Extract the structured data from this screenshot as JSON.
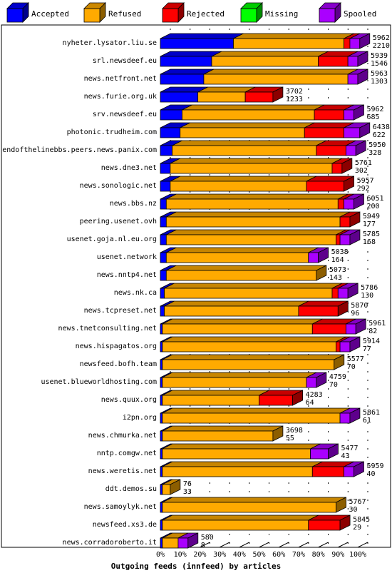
{
  "chart_data": {
    "type": "bar",
    "orientation": "horizontal",
    "stacked": true,
    "title": "Outgoing feeds (innfeed) by articles",
    "legend_position": "top",
    "grid": true,
    "xlim": [
      0,
      100
    ],
    "x_ticks": [
      "0%",
      "10%",
      "20%",
      "30%",
      "40%",
      "50%",
      "60%",
      "70%",
      "80%",
      "90%",
      "100%"
    ],
    "series": [
      {
        "name": "Accepted",
        "color": "#0000ff"
      },
      {
        "name": "Refused",
        "color": "#ffaa00"
      },
      {
        "name": "Rejected",
        "color": "#ff0000"
      },
      {
        "name": "Missing",
        "color": "#00ff00"
      },
      {
        "name": "Spooled",
        "color": "#aa00ff"
      }
    ],
    "categories": [
      {
        "name": "nyheter.lysator.liu.se",
        "total": "5962",
        "accepted_count": "2210",
        "values": [
          37,
          56,
          3,
          0,
          5
        ]
      },
      {
        "name": "srl.newsdeef.eu",
        "total": "5939",
        "accepted_count": "1546",
        "values": [
          26,
          54,
          15,
          0,
          5
        ]
      },
      {
        "name": "news.netfront.net",
        "total": "5963",
        "accepted_count": "1303",
        "values": [
          22,
          73,
          0,
          0,
          5
        ]
      },
      {
        "name": "news.furie.org.uk",
        "total": "3702",
        "accepted_count": "1233",
        "values": [
          19,
          24,
          14,
          0,
          0
        ]
      },
      {
        "name": "srv.newsdeef.eu",
        "total": "5962",
        "accepted_count": "685",
        "values": [
          11,
          67,
          15,
          0,
          5
        ]
      },
      {
        "name": "photonic.trudheim.com",
        "total": "6438",
        "accepted_count": "622",
        "values": [
          10,
          63,
          20,
          0,
          8
        ]
      },
      {
        "name": "endofthelinebbs.peers.news.panix.com",
        "total": "5950",
        "accepted_count": "328",
        "values": [
          6,
          73,
          15,
          0,
          5
        ]
      },
      {
        "name": "news.dne3.net",
        "total": "5761",
        "accepted_count": "302",
        "values": [
          5,
          82,
          5,
          0,
          0
        ]
      },
      {
        "name": "news.sonologic.net",
        "total": "5957",
        "accepted_count": "292",
        "values": [
          5,
          69,
          19,
          0,
          0
        ]
      },
      {
        "name": "news.bbs.nz",
        "total": "6051",
        "accepted_count": "200",
        "values": [
          3,
          87,
          3,
          0,
          5
        ]
      },
      {
        "name": "peering.usenet.ovh",
        "total": "5949",
        "accepted_count": "177",
        "values": [
          3,
          88,
          5,
          0,
          0
        ]
      },
      {
        "name": "usenet.goja.nl.eu.org",
        "total": "5785",
        "accepted_count": "168",
        "values": [
          3,
          86,
          2,
          0,
          5
        ]
      },
      {
        "name": "usenet.network",
        "total": "5038",
        "accepted_count": "164",
        "values": [
          3,
          72,
          0,
          0,
          5
        ]
      },
      {
        "name": "news.nntp4.net",
        "total": "5073",
        "accepted_count": "143",
        "values": [
          3,
          76,
          0,
          0,
          0
        ]
      },
      {
        "name": "news.nk.ca",
        "total": "5786",
        "accepted_count": "130",
        "values": [
          2,
          85,
          3,
          0,
          5
        ]
      },
      {
        "name": "news.tcpreset.net",
        "total": "5870",
        "accepted_count": "96",
        "values": [
          2,
          68,
          20,
          0,
          0
        ]
      },
      {
        "name": "news.tnetconsulting.net",
        "total": "5961",
        "accepted_count": "82",
        "values": [
          1,
          76,
          17,
          0,
          5
        ]
      },
      {
        "name": "news.hispagatos.org",
        "total": "5914",
        "accepted_count": "77",
        "values": [
          1,
          88,
          2,
          0,
          5
        ]
      },
      {
        "name": "newsfeed.bofh.team",
        "total": "5577",
        "accepted_count": "70",
        "values": [
          1,
          87,
          0,
          0,
          0
        ]
      },
      {
        "name": "usenet.blueworldhosting.com",
        "total": "4759",
        "accepted_count": "70",
        "values": [
          1,
          73,
          0,
          0,
          5
        ]
      },
      {
        "name": "news.quux.org",
        "total": "4283",
        "accepted_count": "64",
        "values": [
          1,
          49,
          17,
          0,
          0
        ]
      },
      {
        "name": "i2pn.org",
        "total": "5861",
        "accepted_count": "61",
        "values": [
          1,
          90,
          0,
          0,
          5
        ]
      },
      {
        "name": "news.chmurka.net",
        "total": "3698",
        "accepted_count": "55",
        "values": [
          1,
          56,
          0,
          0,
          0
        ]
      },
      {
        "name": "nntp.comgw.net",
        "total": "5477",
        "accepted_count": "43",
        "values": [
          1,
          75,
          0,
          0,
          9
        ]
      },
      {
        "name": "news.weretis.net",
        "total": "5959",
        "accepted_count": "40",
        "values": [
          1,
          76,
          16,
          0,
          5
        ]
      },
      {
        "name": "ddt.demos.su",
        "total": "76",
        "accepted_count": "33",
        "values": [
          1,
          4,
          0,
          0,
          0
        ]
      },
      {
        "name": "news.samoylyk.net",
        "total": "5767",
        "accepted_count": "30",
        "values": [
          1,
          88,
          0,
          0,
          0
        ]
      },
      {
        "name": "newsfeed.xs3.de",
        "total": "5845",
        "accepted_count": "29",
        "values": [
          1,
          74,
          16,
          0,
          0
        ]
      },
      {
        "name": "news.corradoroberto.it",
        "total": "580",
        "accepted_count": "8",
        "values": [
          1,
          8,
          0,
          0,
          5
        ]
      }
    ]
  }
}
